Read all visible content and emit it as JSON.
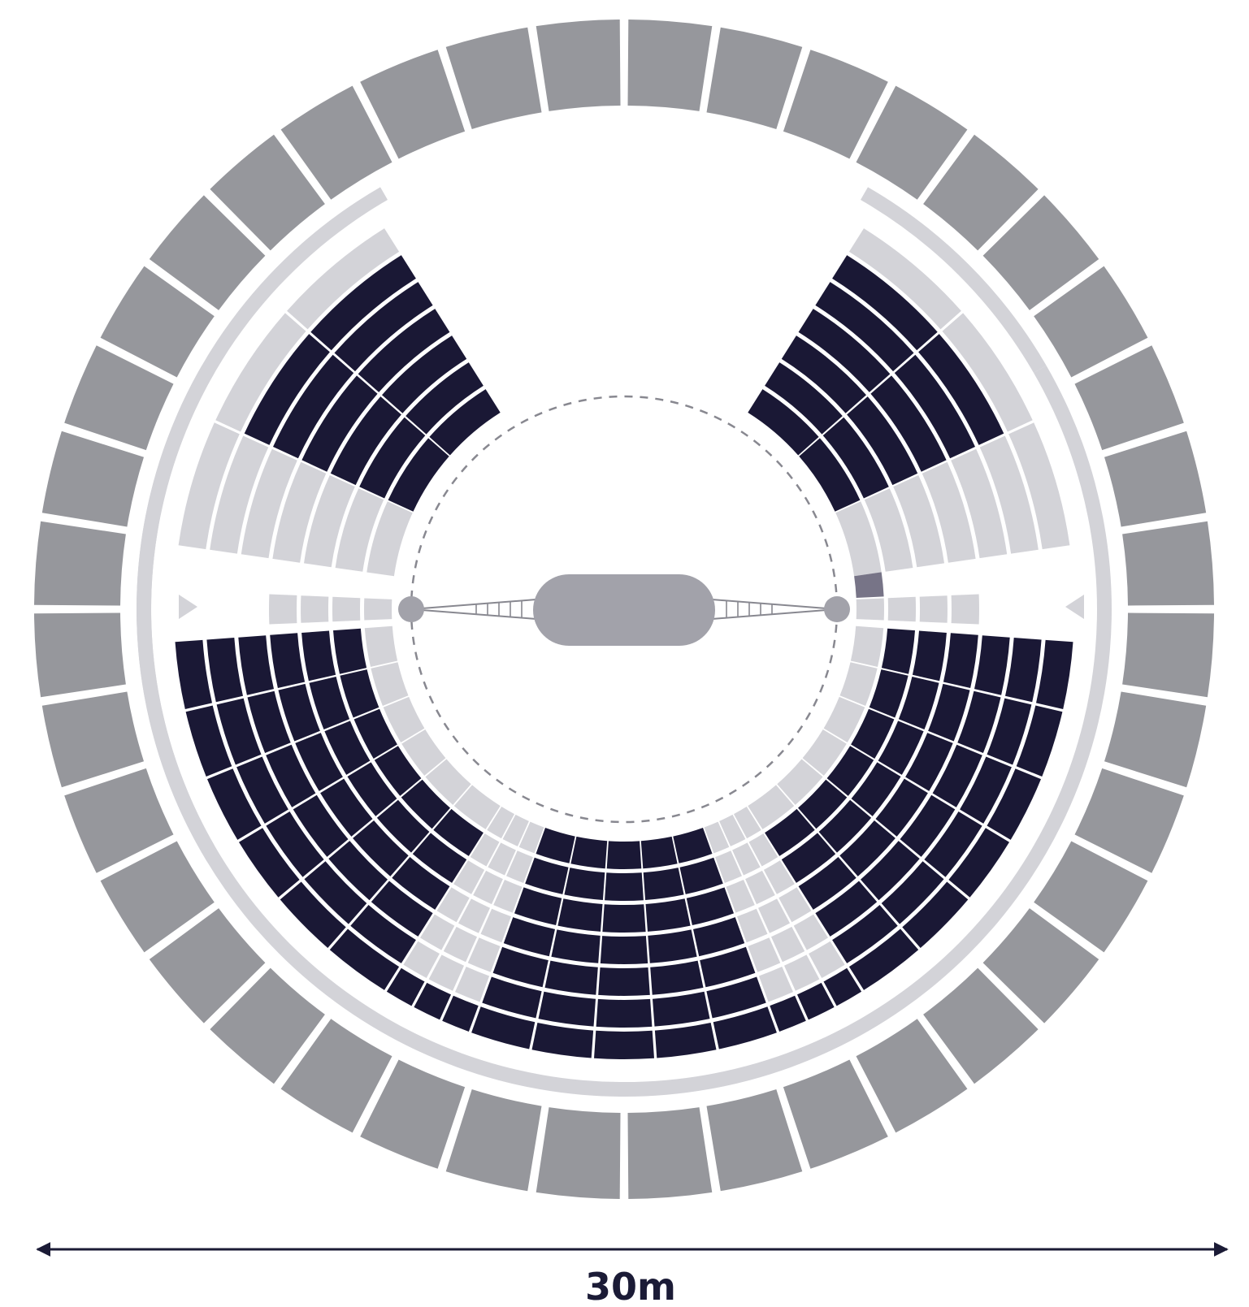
{
  "dimension": {
    "label": "30m"
  },
  "colors": {
    "outer_blocks": "#96979c",
    "walkway": "#d3d3d8",
    "seat_occupied": "#1a1835",
    "seat_available": "#d3d3d8",
    "seat_highlight": "#777487",
    "stage": "#a2a2aa",
    "performance_circle": "#888890",
    "dimension_line": "#1b1b36"
  },
  "sections": [
    {
      "name": "left-upper",
      "rows": 7,
      "seats_per_row": 3,
      "occupied_seats_per_row": 2
    },
    {
      "name": "left-middle",
      "rows": 4,
      "seats_per_row": 1,
      "occupied_seats_per_row": 0
    },
    {
      "name": "left-lower",
      "rows": 7,
      "seats_per_row": 6,
      "occupied_seats_per_row": 5
    },
    {
      "name": "left-front",
      "rows": 7,
      "seats_per_row": 3,
      "occupied_seats_per_row": 1
    },
    {
      "name": "center",
      "rows": 7,
      "seats_per_row": 5,
      "occupied_seats_per_row": 5
    },
    {
      "name": "right-front",
      "rows": 7,
      "seats_per_row": 3,
      "occupied_seats_per_row": 1
    },
    {
      "name": "right-lower",
      "rows": 7,
      "seats_per_row": 6,
      "occupied_seats_per_row": 5
    },
    {
      "name": "right-middle",
      "rows": 4,
      "seats_per_row": 1,
      "occupied_seats_per_row": 0
    },
    {
      "name": "right-upper",
      "rows": 7,
      "seats_per_row": 3,
      "occupied_seats_per_row": 2
    }
  ],
  "outer_ring_blocks": 40
}
